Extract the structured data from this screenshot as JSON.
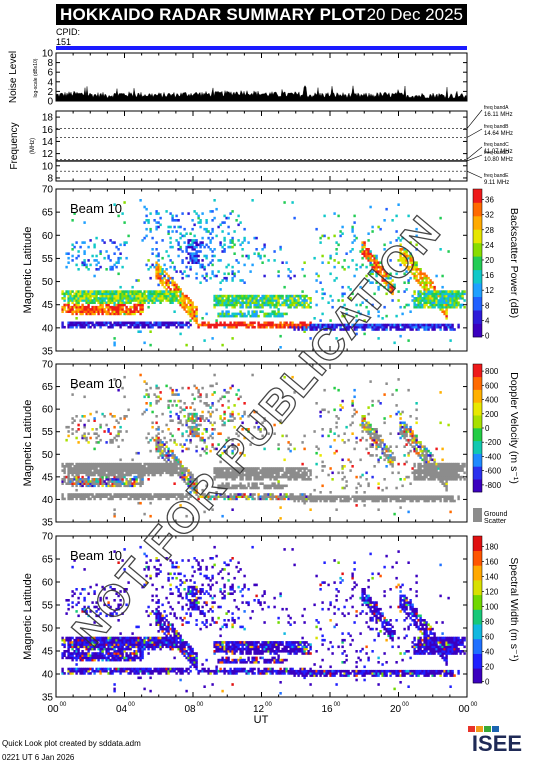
{
  "header": {
    "title": "HOKKAIDO RADAR SUMMARY PLOT",
    "date": "20 Dec 2025"
  },
  "cpid": {
    "label": "CPID:",
    "value": "151"
  },
  "watermark": "NOT FOR PUBLICATION",
  "footer": {
    "line1": "Quick Look plot created by sddata.adm",
    "line2": "0221 UT  6 Jan 2026"
  },
  "logo": {
    "text": "ISEE"
  },
  "colors": {
    "cpid_bar": "#1b1bff",
    "ground_scatter": "#8c8c8c"
  },
  "chart_data": [
    {
      "type": "area",
      "name": "noise",
      "ylabel": "Noise Level",
      "ylabel_sub": "log-scale (dBx10)",
      "ylim": [
        0,
        10
      ],
      "yticks": [
        "0",
        "2",
        "4",
        "6",
        "8",
        "10"
      ],
      "x": [
        0,
        1,
        2,
        3,
        4,
        5,
        6,
        7,
        8,
        9,
        10,
        11,
        12,
        13,
        14,
        15,
        16,
        17,
        18,
        19,
        20,
        21,
        22,
        23,
        24
      ],
      "values": [
        1.2,
        1.5,
        1.3,
        1.2,
        1.4,
        1.3,
        1.2,
        1.3,
        1.5,
        1.4,
        1.6,
        1.8,
        1.5,
        1.3,
        1.4,
        1.2,
        1.3,
        1.2,
        1.1,
        1.3,
        1.2,
        1.1,
        1.2,
        1.1,
        1.0
      ]
    },
    {
      "type": "line",
      "name": "frequency",
      "ylabel": "Frequency",
      "ylabel_sub": "(MHz)",
      "ylim": [
        7.5,
        19
      ],
      "yticks": [
        "8",
        "10",
        "12",
        "14",
        "16",
        "18"
      ],
      "bands": [
        {
          "label": "freq bandA",
          "value": "16.11 MHz",
          "mhz": 16.11
        },
        {
          "label": "freq bandB",
          "value": "14.64 MHz",
          "mhz": 14.64
        },
        {
          "label": "freq bandC",
          "value": "11.07 MHz",
          "mhz": 11.07
        },
        {
          "label": "freq bandD",
          "value": "10.80 MHz",
          "mhz": 10.8
        },
        {
          "label": "freq bandE",
          "value": "9.11 MHz",
          "mhz": 9.11
        }
      ],
      "trace_mhz": 10.8
    },
    {
      "type": "heatmap",
      "name": "power",
      "beam": "Beam 10",
      "ylabel": "Magnetic Latitude",
      "ylim": [
        35,
        70
      ],
      "yticks": [
        "35",
        "40",
        "45",
        "50",
        "55",
        "60",
        "65",
        "70"
      ],
      "colorbar_label": "Backscatter Power (dB)",
      "colorbar_ticks": [
        "0",
        "4",
        "8",
        "12",
        "16",
        "20",
        "24",
        "28",
        "32",
        "36"
      ]
    },
    {
      "type": "heatmap",
      "name": "velocity",
      "beam": "Beam 10",
      "ylabel": "Magnetic Latitude",
      "ylim": [
        35,
        70
      ],
      "yticks": [
        "35",
        "40",
        "45",
        "50",
        "55",
        "60",
        "65",
        "70"
      ],
      "colorbar_label": "Doppler Velocity (m s⁻¹)",
      "colorbar_ticks": [
        "-800",
        "-600",
        "-400",
        "-200",
        "0",
        "200",
        "400",
        "600",
        "800"
      ],
      "ground_label": "Ground",
      "ground_label2": "Scatter"
    },
    {
      "type": "heatmap",
      "name": "width",
      "beam": "Beam 10",
      "ylabel": "Magnetic Latitude",
      "ylim": [
        35,
        70
      ],
      "yticks": [
        "35",
        "40",
        "45",
        "50",
        "55",
        "60",
        "65",
        "70"
      ],
      "colorbar_label": "Spectral Width (m s⁻¹)",
      "colorbar_ticks": [
        "0",
        "20",
        "40",
        "60",
        "80",
        "100",
        "120",
        "140",
        "160",
        "180"
      ]
    }
  ],
  "xaxis": {
    "xlabel": "UT",
    "xlim": [
      0,
      24
    ],
    "ticks": [
      {
        "h": 0,
        "label": "00",
        "sup": "00"
      },
      {
        "h": 4,
        "label": "04",
        "sup": "00"
      },
      {
        "h": 8,
        "label": "08",
        "sup": "00"
      },
      {
        "h": 12,
        "label": "12",
        "sup": "00"
      },
      {
        "h": 16,
        "label": "16",
        "sup": "00"
      },
      {
        "h": 20,
        "label": "20",
        "sup": "00"
      },
      {
        "h": 24,
        "label": "00",
        "sup": "00"
      }
    ]
  }
}
